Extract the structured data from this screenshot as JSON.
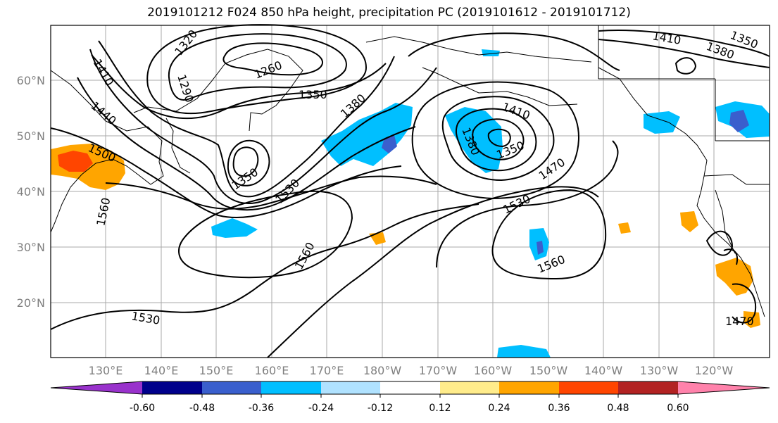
{
  "title": "2019101212 F024 850 hPa height, precipitation PC (2019101612 - 2019101712)",
  "lat_labels": [
    "60°N",
    "50°N",
    "40°N",
    "30°N",
    "20°N"
  ],
  "lon_labels": [
    "130°E",
    "140°E",
    "150°E",
    "160°E",
    "170°E",
    "180°W",
    "170°W",
    "160°W",
    "150°W",
    "140°W",
    "130°W",
    "120°W"
  ],
  "contour_labels": [
    "1320",
    "1260",
    "1290",
    "1410",
    "1440",
    "1500",
    "1350",
    "1380",
    "1350",
    "1530",
    "1560",
    "1560",
    "1530",
    "1410",
    "1380",
    "1350",
    "1470",
    "1530",
    "1560",
    "1410",
    "1380",
    "1350",
    "1470"
  ],
  "colorbar": {
    "colors": [
      "#9932cc",
      "#00008b",
      "#3a5fcd",
      "#00bfff",
      "#b0e2ff",
      "#ffffff",
      "#ffec8b",
      "#ffa500",
      "#ff4500",
      "#b22222",
      "#ff82ab"
    ],
    "tick_labels": [
      "-0.60",
      "-0.48",
      "-0.36",
      "-0.24",
      "-0.12",
      "0.12",
      "0.24",
      "0.36",
      "0.48",
      "0.60"
    ]
  }
}
